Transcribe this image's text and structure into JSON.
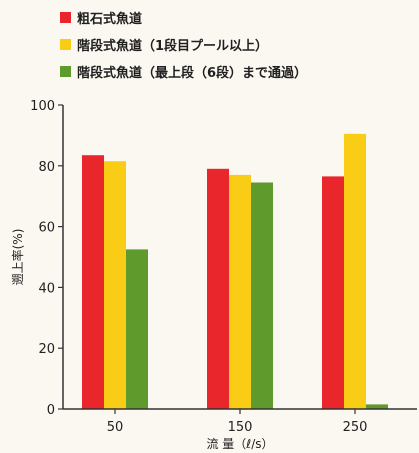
{
  "chart_data": {
    "type": "bar",
    "categories": [
      "50",
      "150",
      "250"
    ],
    "series": [
      {
        "name": "粗石式魚道",
        "color": "#e8262b",
        "values": [
          83.5,
          79,
          76.5
        ]
      },
      {
        "name": "階段式魚道（1段目プール以上）",
        "color": "#f9cd16",
        "values": [
          81.5,
          77,
          90.5
        ]
      },
      {
        "name": "階段式魚道（最上段（6段）まで通過）",
        "color": "#5f9a2c",
        "values": [
          52.5,
          74.5,
          1.5
        ]
      }
    ],
    "xlabel": "流 量（ℓ/s）",
    "ylabel": "遡上率(%)",
    "ylim": [
      0,
      100
    ],
    "yticks": [
      "0",
      "20",
      "40",
      "60",
      "80",
      "100"
    ],
    "grid": false,
    "legend_position": "top-left"
  }
}
